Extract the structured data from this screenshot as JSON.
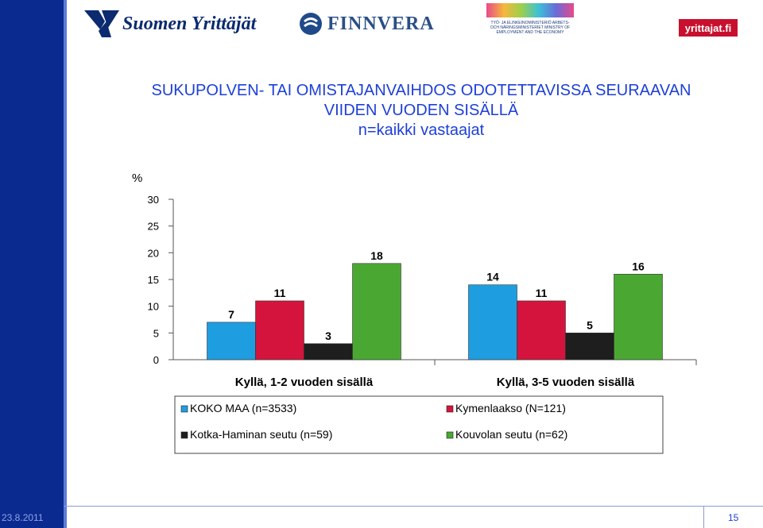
{
  "header": {
    "logos": {
      "suomen_yrittajat": "Suomen Yrittäjät",
      "finnvera": "FINNVERA",
      "ministry": "TYÖ- JA ELINKEINOMINISTERIÖ ARBETS- OCH NÄRINGSMINISTERIET MINISTRY OF EMPLOYMENT AND THE ECONOMY",
      "yrittajat_fi": "yrittajat.fi"
    }
  },
  "title_lines": [
    "SUKUPOLVEN- TAI OMISTAJANVAIHDOS ODOTETTAVISSA SEURAAVAN",
    "VIIDEN VUODEN SISÄLLÄ",
    "n=kaikki vastaajat"
  ],
  "footer": {
    "date": "23.8.2011",
    "page": "15"
  },
  "colors": {
    "title": "#1d3fd8",
    "brand_blue": "#0b2a8f"
  },
  "chart_data": {
    "type": "bar",
    "ylabel": "%",
    "ylim": [
      0,
      30
    ],
    "yticks": [
      "0",
      "5",
      "10",
      "15",
      "20",
      "25",
      "30"
    ],
    "categories": [
      "Kyllä, 1-2 vuoden sisällä",
      "Kyllä, 3-5 vuoden sisällä"
    ],
    "series": [
      {
        "name": "KOKO MAA (n=3533)",
        "color": "#1e9ee0",
        "values": [
          7,
          14
        ]
      },
      {
        "name": "Kymenlaakso (N=121)",
        "color": "#d4143c",
        "values": [
          11,
          11
        ]
      },
      {
        "name": "Kotka-Haminan seutu (n=59)",
        "color": "#1e1e1e",
        "values": [
          3,
          5
        ]
      },
      {
        "name": "Kouvolan seutu (n=62)",
        "color": "#4aa832",
        "values": [
          18,
          16
        ]
      }
    ],
    "data_labels": [
      [
        "7",
        "14"
      ],
      [
        "11",
        "11"
      ],
      [
        "3",
        "5"
      ],
      [
        "18",
        "16"
      ]
    ],
    "grid": false,
    "legend_position": "bottom"
  }
}
